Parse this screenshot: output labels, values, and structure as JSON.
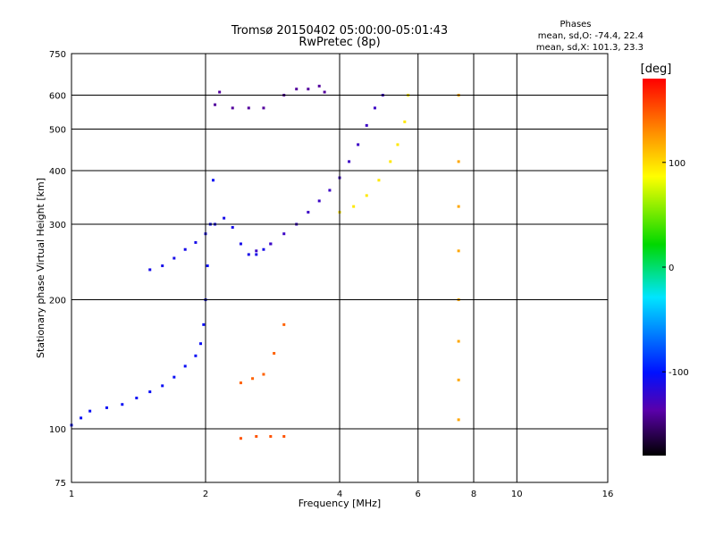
{
  "chart_data": {
    "type": "scatter",
    "title": "Tromsø 20150402 05:00:00-05:01:43",
    "subtitle": "RwPretec (8p)",
    "xlabel": "Frequency [MHz]",
    "ylabel": "Stationary phase Virtual Height [km]",
    "x_scale": "log",
    "y_scale": "log",
    "xlim": [
      1,
      16
    ],
    "ylim": [
      75,
      750
    ],
    "x_ticks": [
      "1",
      "2",
      "4",
      "6",
      "8",
      "10",
      "16"
    ],
    "y_ticks": [
      "75",
      "100",
      "200",
      "300",
      "400",
      "500",
      "600",
      "750"
    ],
    "grid": true,
    "info": {
      "heading": "Phases",
      "line1": "mean, sd,O: -74.4, 22.4",
      "line2": "mean, sd,X: 101.3, 23.3"
    },
    "colorbar": {
      "label": "[deg]",
      "range": [
        -180,
        180
      ],
      "ticks": [
        "100",
        "0",
        "-100"
      ],
      "tick_values": [
        100,
        0,
        -100
      ]
    },
    "series": [
      {
        "color_value": -105,
        "x": [
          1.0,
          1.05,
          1.1,
          1.2,
          1.3,
          1.4,
          1.5,
          1.6,
          1.7,
          1.8,
          1.9,
          1.95,
          1.98,
          2.0,
          2.02,
          2.05,
          2.08
        ],
        "y": [
          102,
          106,
          110,
          112,
          114,
          118,
          122,
          126,
          132,
          140,
          148,
          158,
          175,
          200,
          240,
          300,
          380
        ]
      },
      {
        "color_value": -110,
        "x": [
          1.5,
          1.6,
          1.7,
          1.8,
          1.9,
          2.0,
          2.1,
          2.2,
          2.3,
          2.4,
          2.5,
          2.6,
          2.7,
          2.8
        ],
        "y": [
          235,
          240,
          250,
          262,
          272,
          285,
          300,
          310,
          295,
          270,
          255,
          255,
          262,
          270
        ]
      },
      {
        "color_value": -125,
        "x": [
          2.6,
          2.8,
          3.0,
          3.2,
          3.4,
          3.6,
          3.8,
          4.0,
          4.2,
          4.4,
          4.6,
          4.8,
          5.0
        ],
        "y": [
          260,
          270,
          285,
          300,
          320,
          340,
          360,
          385,
          420,
          460,
          510,
          560,
          600
        ]
      },
      {
        "color_value": -140,
        "x": [
          2.1,
          2.15,
          2.3,
          2.5,
          2.7,
          3.0,
          3.2,
          3.4,
          3.6,
          3.7
        ],
        "y": [
          570,
          610,
          560,
          560,
          560,
          600,
          620,
          620,
          630,
          610
        ]
      },
      {
        "color_value": 95,
        "x": [
          4.0,
          4.3,
          4.6,
          4.9,
          5.2,
          5.4,
          5.6,
          5.7
        ],
        "y": [
          320,
          330,
          350,
          380,
          420,
          460,
          520,
          600
        ]
      },
      {
        "color_value": 145,
        "x": [
          2.4,
          2.55,
          2.7,
          2.85,
          3.0
        ],
        "y": [
          128,
          131,
          134,
          150,
          175
        ]
      },
      {
        "color_value": 150,
        "x": [
          2.4,
          2.6,
          2.8,
          3.0
        ],
        "y": [
          95,
          96,
          96,
          96
        ]
      },
      {
        "color_value": 120,
        "x": [
          7.4,
          7.4,
          7.4,
          7.4,
          7.4,
          7.4,
          7.4,
          7.4
        ],
        "y": [
          105,
          130,
          160,
          200,
          260,
          330,
          420,
          600
        ]
      }
    ]
  }
}
